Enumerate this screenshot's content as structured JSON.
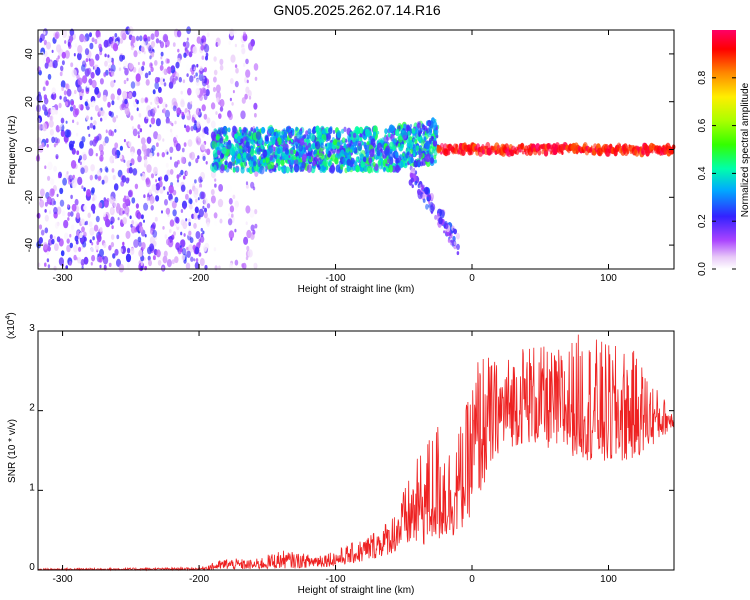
{
  "title": "GN05.2025.262.07.14.R16",
  "chart_data": [
    {
      "type": "heatmap",
      "xlabel": "Height of straight line (km)",
      "ylabel": "Frequency (Hz)",
      "xlim": [
        -318,
        148
      ],
      "ylim": [
        -50,
        50
      ],
      "xticks": [
        -300,
        -200,
        -100,
        0,
        100
      ],
      "yticks": [
        -40,
        -20,
        0,
        20,
        40
      ],
      "colorbar": {
        "label": "Normalized spectral amplitude",
        "range": [
          0,
          1
        ],
        "ticks": [
          0.0,
          0.2,
          0.4,
          0.6,
          0.8
        ]
      },
      "regions": [
        {
          "name": "noise",
          "x_range": [
            -318,
            -193
          ],
          "freq_range": [
            -50,
            50
          ],
          "amplitude": 0.15
        },
        {
          "name": "noise-gap-band-1",
          "x_range": [
            -190,
            -183
          ],
          "freq_range": [
            -50,
            50
          ],
          "amplitude": 0.1
        },
        {
          "name": "noise-gap-band-2",
          "x_range": [
            -178,
            -172
          ],
          "freq_range": [
            -50,
            50
          ],
          "amplitude": 0.1
        },
        {
          "name": "noise-gap-band-3",
          "x_range": [
            -168,
            -158
          ],
          "freq_range": [
            -50,
            50
          ],
          "amplitude": 0.1
        },
        {
          "name": "transition-band",
          "x_range": [
            -190,
            -25
          ],
          "freq_range": [
            -15,
            10
          ],
          "amplitude": 0.35
        },
        {
          "name": "descending-tail",
          "x_range": [
            -45,
            -10
          ],
          "freq_center_from": -10,
          "freq_center_to": -40,
          "amplitude": 0.15
        },
        {
          "name": "carrier",
          "x_range": [
            -25,
            148
          ],
          "freq_center": 0,
          "amplitude": 1.0
        }
      ]
    },
    {
      "type": "line",
      "xlabel": "Height of straight line (km)",
      "ylabel": "SNR (10 * v/v)",
      "yscale_label": "(x10",
      "yscale_exponent": "4",
      "xlim": [
        -318,
        148
      ],
      "ylim": [
        0,
        3
      ],
      "xticks": [
        -300,
        -200,
        -100,
        0,
        100
      ],
      "yticks": [
        0,
        1,
        2,
        3
      ],
      "color": "#ee2222",
      "envelope": [
        {
          "x": -318,
          "low": 0.0,
          "high": 0.02
        },
        {
          "x": -200,
          "low": 0.0,
          "high": 0.03
        },
        {
          "x": -180,
          "low": 0.01,
          "high": 0.15
        },
        {
          "x": -160,
          "low": 0.01,
          "high": 0.13
        },
        {
          "x": -140,
          "low": 0.02,
          "high": 0.25
        },
        {
          "x": -120,
          "low": 0.03,
          "high": 0.2
        },
        {
          "x": -100,
          "low": 0.05,
          "high": 0.25
        },
        {
          "x": -80,
          "low": 0.1,
          "high": 0.4
        },
        {
          "x": -60,
          "low": 0.2,
          "high": 0.65
        },
        {
          "x": -45,
          "low": 0.3,
          "high": 1.2
        },
        {
          "x": -35,
          "low": 0.3,
          "high": 1.6
        },
        {
          "x": -25,
          "low": 0.35,
          "high": 1.9
        },
        {
          "x": -15,
          "low": 0.4,
          "high": 1.55
        },
        {
          "x": -5,
          "low": 0.55,
          "high": 2.0
        },
        {
          "x": 5,
          "low": 0.9,
          "high": 2.8
        },
        {
          "x": 20,
          "low": 1.5,
          "high": 2.6
        },
        {
          "x": 40,
          "low": 1.6,
          "high": 2.9
        },
        {
          "x": 60,
          "low": 1.5,
          "high": 2.75
        },
        {
          "x": 80,
          "low": 1.4,
          "high": 3.0
        },
        {
          "x": 100,
          "low": 1.3,
          "high": 2.85
        },
        {
          "x": 120,
          "low": 1.4,
          "high": 2.75
        },
        {
          "x": 135,
          "low": 1.6,
          "high": 2.3
        },
        {
          "x": 148,
          "low": 1.8,
          "high": 2.0
        }
      ]
    }
  ],
  "colors": {
    "line": "#ee2222",
    "axis": "#000000"
  }
}
